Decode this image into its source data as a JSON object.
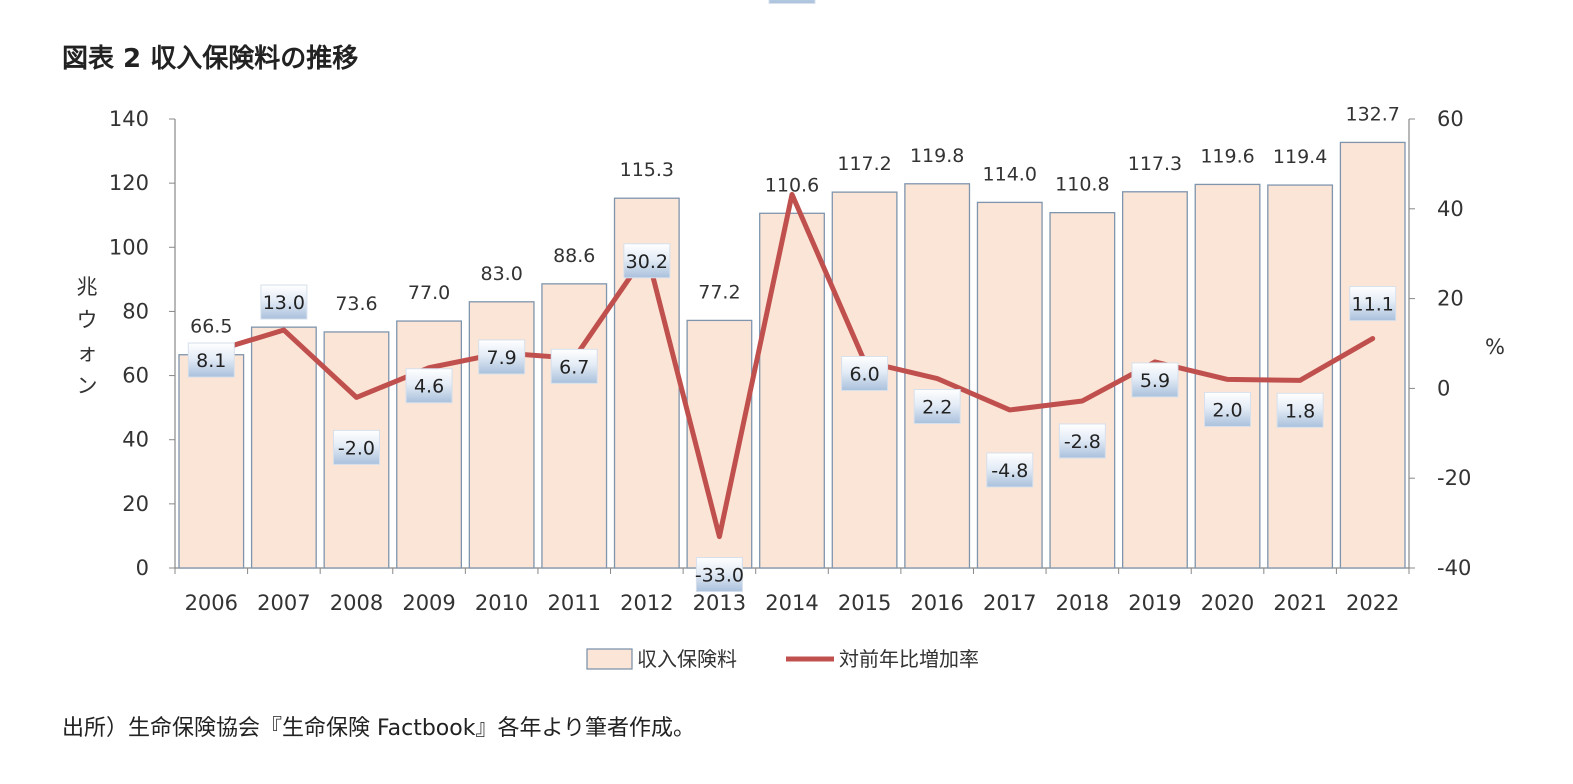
{
  "title": "図表 2 収入保険料の推移",
  "source": "出所）生命保険協会『生命保険 Factbook』各年より筆者作成。",
  "colors": {
    "bar_fill": "#FBE5D6",
    "bar_stroke": "#7F95AE",
    "line": "#C0504D",
    "axis": "#888888"
  },
  "chart_data": {
    "type": "bar",
    "categories": [
      "2006",
      "2007",
      "2008",
      "2009",
      "2010",
      "2011",
      "2012",
      "2013",
      "2014",
      "2015",
      "2016",
      "2017",
      "2018",
      "2019",
      "2020",
      "2021",
      "2022"
    ],
    "series": [
      {
        "name": "収入保険料",
        "type": "bar",
        "axis": "left",
        "values": [
          66.5,
          75.1,
          73.6,
          77.0,
          83.0,
          88.6,
          115.3,
          77.2,
          110.6,
          117.2,
          119.8,
          114.0,
          110.8,
          117.3,
          119.6,
          119.4,
          132.7
        ],
        "labels": [
          "66.5",
          "75.1",
          "73.6",
          "77.0",
          "83.0",
          "88.6",
          "115.3",
          "77.2",
          "110.6",
          "117.2",
          "119.8",
          "114.0",
          "110.8",
          "117.3",
          "119.6",
          "119.4",
          "132.7"
        ]
      },
      {
        "name": "対前年比増加率",
        "type": "line",
        "axis": "right",
        "values": [
          8.1,
          13.0,
          -2.0,
          4.6,
          7.9,
          6.7,
          30.2,
          -33.0,
          43.2,
          6.0,
          2.2,
          -4.8,
          -2.8,
          5.9,
          2.0,
          1.8,
          11.1
        ],
        "labels": [
          "8.1",
          "13.0",
          "-2.0",
          "4.6",
          "7.9",
          "6.7",
          "30.2",
          "-33.0",
          "43.2",
          "6.0",
          "2.2",
          "-4.8",
          "-2.8",
          "5.9",
          "2.0",
          "1.8",
          "11.1"
        ]
      }
    ],
    "ylabel_left": "兆ウォン",
    "ylabel_right": "%",
    "ylim_left": [
      0,
      140
    ],
    "yticks_left": [
      0,
      20,
      40,
      60,
      80,
      100,
      120,
      140
    ],
    "ylim_right": [
      -40,
      60
    ],
    "yticks_right": [
      -40,
      -20,
      0,
      20,
      40,
      60
    ],
    "legend_position": "bottom",
    "grid": false
  }
}
